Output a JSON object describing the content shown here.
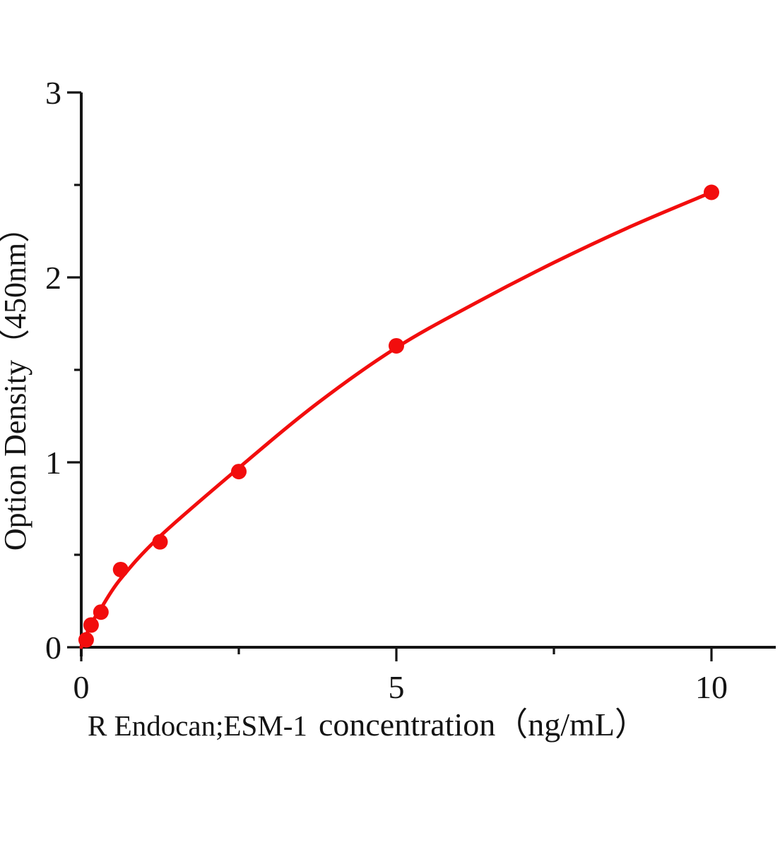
{
  "figure": {
    "background": "#ffffff",
    "description": "ELISA standard curve plot, red dots with fitted red curve on black axes"
  },
  "chart_data": {
    "type": "scatter",
    "title": "",
    "xlabel": "R Endocan;ESM-1 concentration（ng/mL）",
    "xlabel_part1": "R Endocan;ESM-1",
    "xlabel_part2": "concentration（ng/mL）",
    "ylabel": "Option Density（450nm）",
    "xlim": [
      0,
      11.0
    ],
    "ylim": [
      0,
      3.0
    ],
    "grid": false,
    "legend": "none",
    "x_ticks_major": [
      0,
      5,
      10
    ],
    "x_ticks_minor": [
      2.5,
      7.5
    ],
    "y_ticks_major": [
      0,
      1,
      2,
      3
    ],
    "y_ticks_minor": [
      0.5,
      1.5,
      2.5
    ],
    "points": [
      {
        "x": 0.078,
        "y": 0.04
      },
      {
        "x": 0.156,
        "y": 0.12
      },
      {
        "x": 0.312,
        "y": 0.19
      },
      {
        "x": 0.625,
        "y": 0.42
      },
      {
        "x": 1.25,
        "y": 0.57
      },
      {
        "x": 2.5,
        "y": 0.95
      },
      {
        "x": 5,
        "y": 1.63
      },
      {
        "x": 10,
        "y": 2.46
      }
    ],
    "curve_fit_points": [
      {
        "x": 0,
        "y": 0.0
      },
      {
        "x": 0.156,
        "y": 0.125
      },
      {
        "x": 0.312,
        "y": 0.21
      },
      {
        "x": 0.625,
        "y": 0.37
      },
      {
        "x": 1.25,
        "y": 0.6
      },
      {
        "x": 2.5,
        "y": 0.97
      },
      {
        "x": 3.75,
        "y": 1.32
      },
      {
        "x": 5,
        "y": 1.62
      },
      {
        "x": 6.25,
        "y": 1.86
      },
      {
        "x": 7.5,
        "y": 2.08
      },
      {
        "x": 8.75,
        "y": 2.28
      },
      {
        "x": 10,
        "y": 2.46
      }
    ],
    "colors": {
      "curve": "#f20d0d",
      "marker": "#f20d0d",
      "axis": "#141414",
      "text": "#141414"
    },
    "marker_radius": 11
  }
}
